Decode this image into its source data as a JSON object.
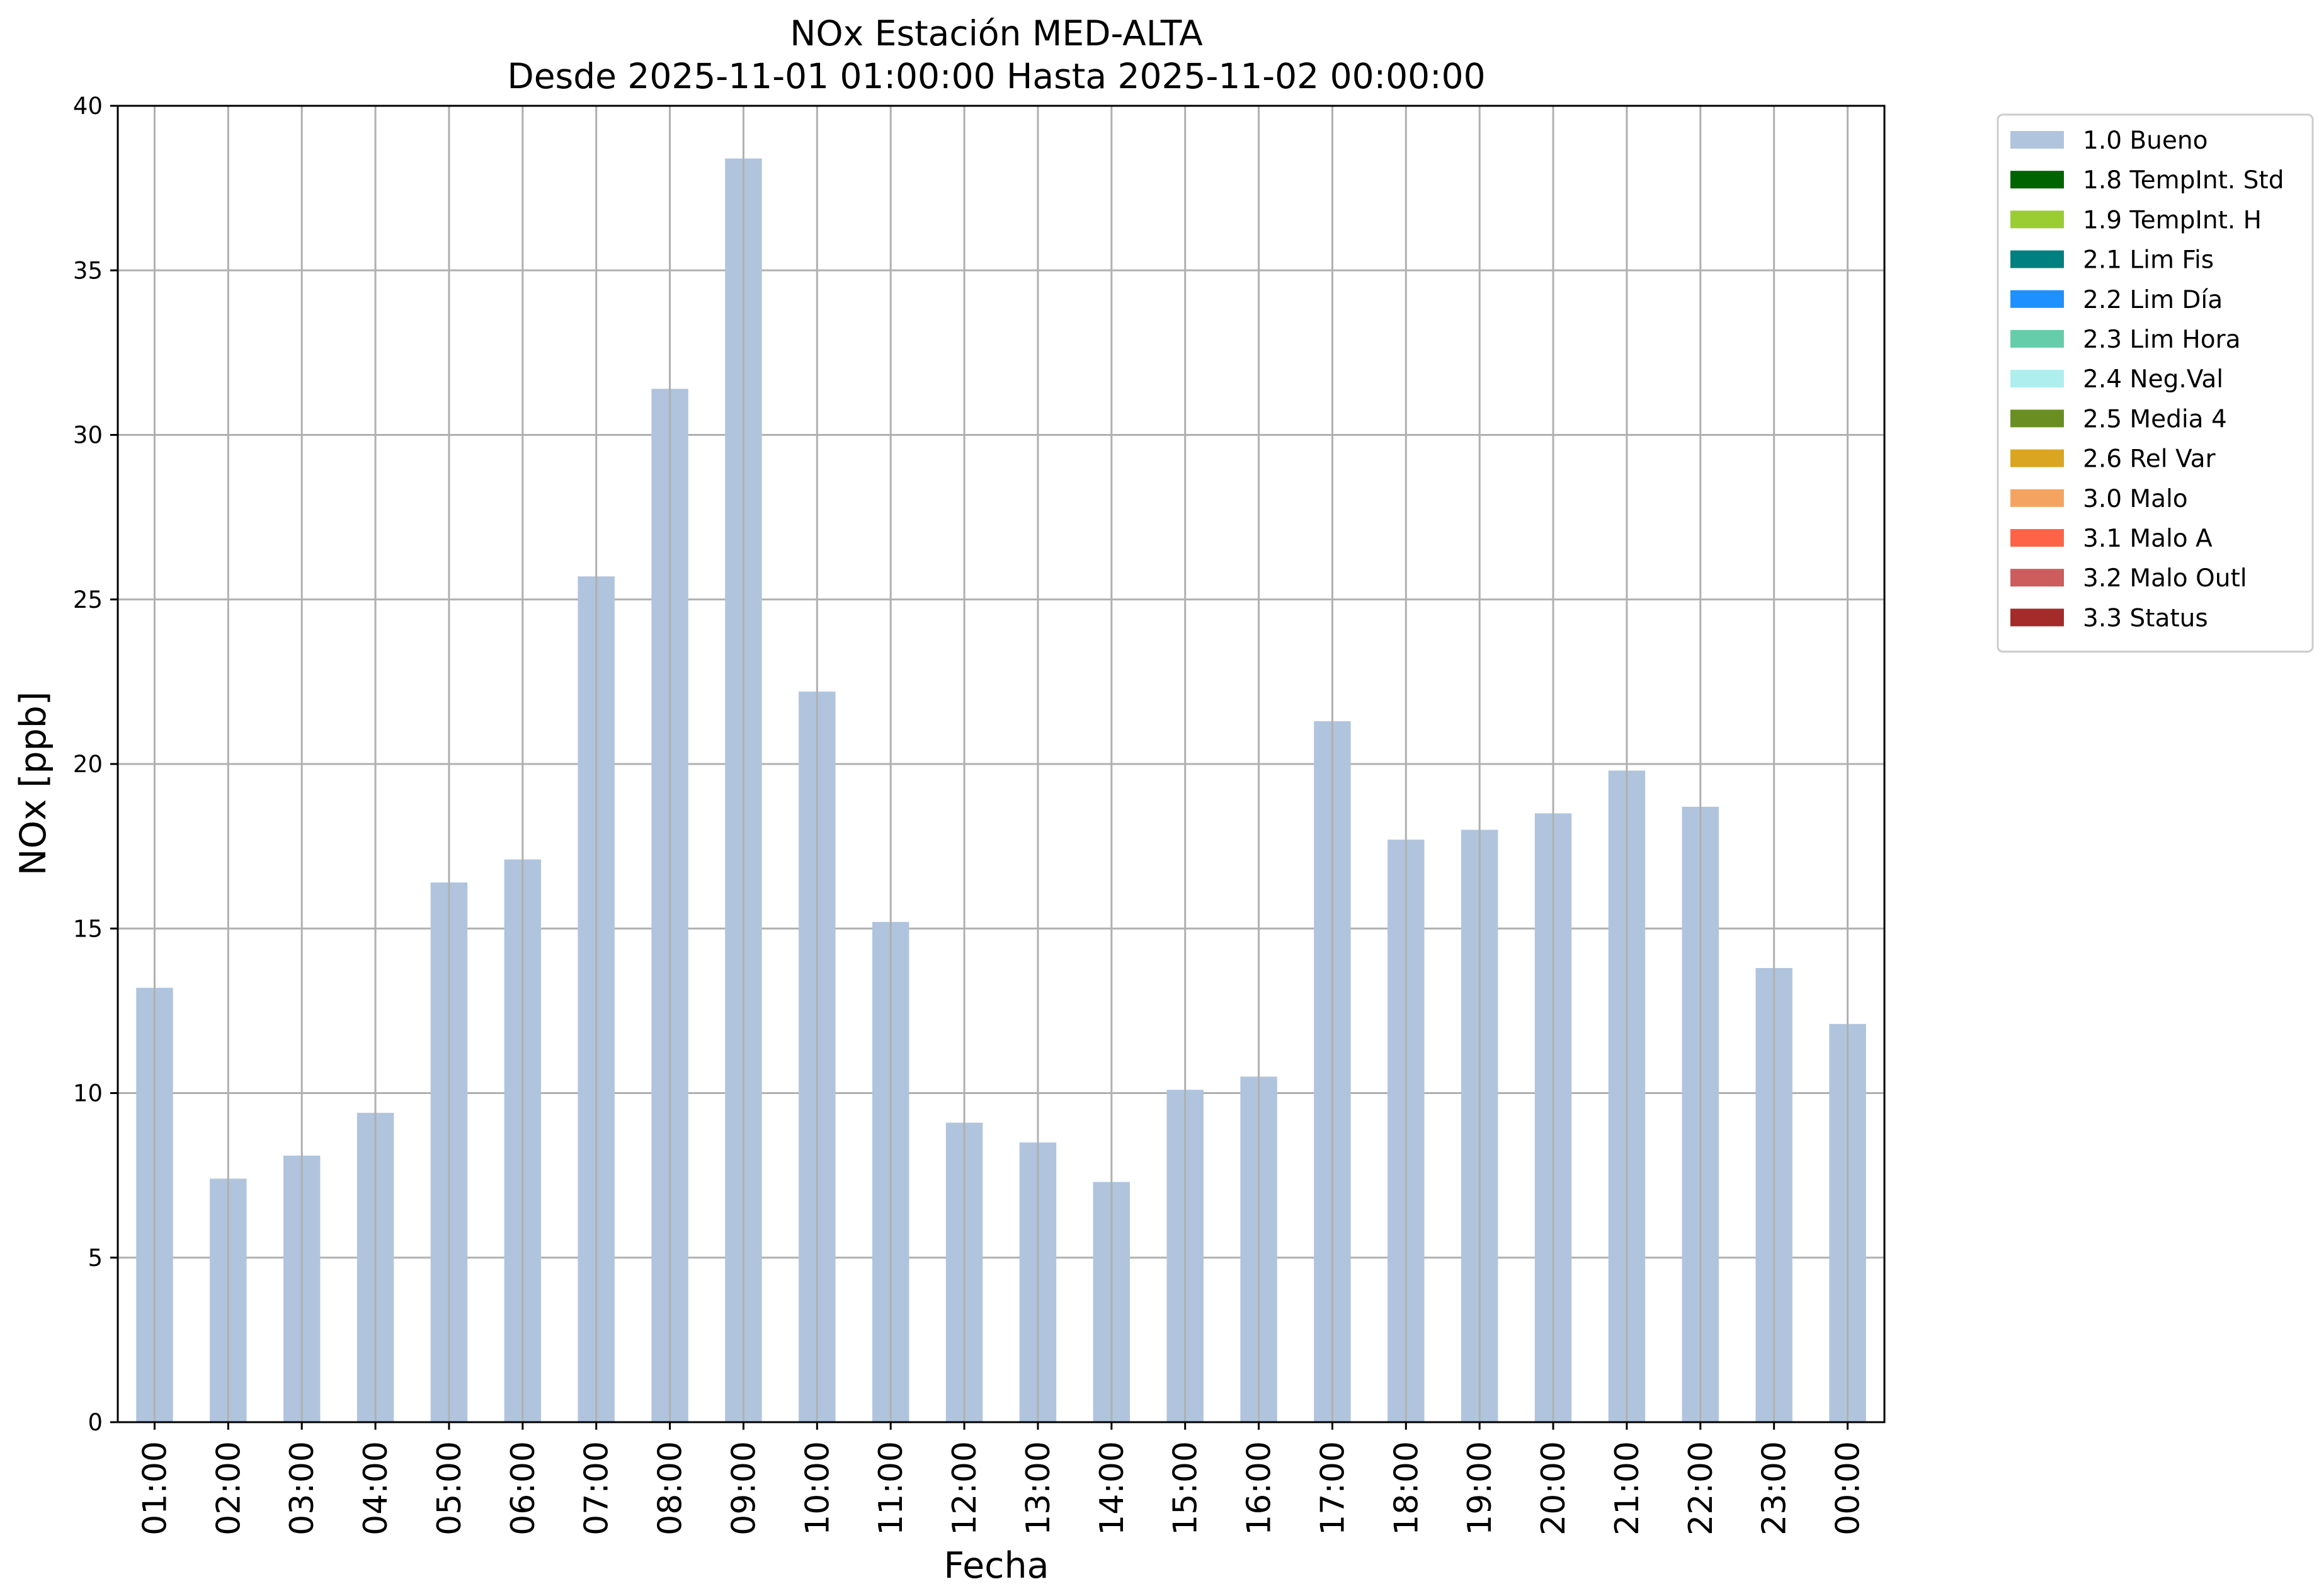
{
  "chart_data": {
    "type": "bar",
    "title": "NOx Estación MED-ALTA",
    "subtitle": "Desde 2025-11-01 01:00:00 Hasta 2025-11-02 00:00:00",
    "xlabel": "Fecha",
    "ylabel": "NOx [ppb]",
    "ylim": [
      0,
      40
    ],
    "yticks": [
      0,
      5,
      10,
      15,
      20,
      25,
      30,
      35,
      40
    ],
    "grid": true,
    "legend_position": "outside-top-right",
    "categories": [
      "01:00",
      "02:00",
      "03:00",
      "04:00",
      "05:00",
      "06:00",
      "07:00",
      "08:00",
      "09:00",
      "10:00",
      "11:00",
      "12:00",
      "13:00",
      "14:00",
      "15:00",
      "16:00",
      "17:00",
      "18:00",
      "19:00",
      "20:00",
      "21:00",
      "22:00",
      "23:00",
      "00:00"
    ],
    "series": [
      {
        "name": "1.0 Bueno",
        "color": "#b0c4de",
        "values": [
          13.2,
          7.4,
          8.1,
          9.4,
          16.4,
          17.1,
          25.7,
          31.4,
          38.4,
          22.2,
          15.2,
          9.1,
          8.5,
          7.3,
          10.1,
          10.5,
          21.3,
          17.7,
          18.0,
          18.5,
          19.8,
          18.7,
          13.8,
          12.1
        ]
      }
    ],
    "legend": [
      {
        "label": "1.0 Bueno",
        "color": "#b0c4de"
      },
      {
        "label": "1.8 TempInt. Std",
        "color": "#006400"
      },
      {
        "label": "1.9 TempInt. H",
        "color": "#9acd32"
      },
      {
        "label": "2.1 Lim Fis",
        "color": "#008080"
      },
      {
        "label": "2.2 Lim Día",
        "color": "#1e90ff"
      },
      {
        "label": "2.3 Lim Hora",
        "color": "#66cdaa"
      },
      {
        "label": "2.4 Neg.Val",
        "color": "#afeeee"
      },
      {
        "label": "2.5 Media 4",
        "color": "#6b8e23"
      },
      {
        "label": "2.6 Rel Var",
        "color": "#daa520"
      },
      {
        "label": "3.0 Malo",
        "color": "#f4a460"
      },
      {
        "label": "3.1 Malo A",
        "color": "#ff6347"
      },
      {
        "label": "3.2 Malo Outl",
        "color": "#cd5c5c"
      },
      {
        "label": "3.3 Status",
        "color": "#a52a2a"
      }
    ]
  }
}
